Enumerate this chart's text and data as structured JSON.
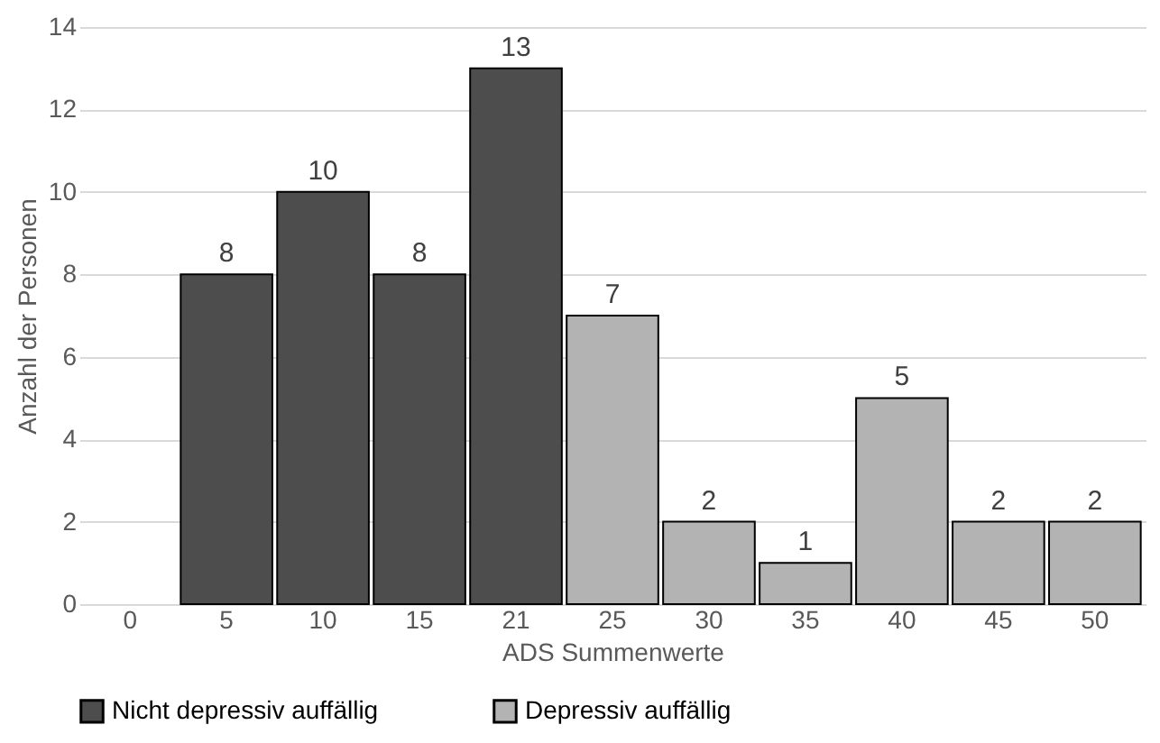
{
  "chart_data": {
    "type": "bar",
    "xlabel": "ADS Summenwerte",
    "ylabel": "Anzahl der Personen",
    "categories": [
      "0",
      "5",
      "10",
      "15",
      "21",
      "25",
      "30",
      "35",
      "40",
      "45",
      "50"
    ],
    "series": [
      {
        "name": "Nicht depressiv auffällig",
        "color": "#4d4d4d",
        "values": [
          null,
          8,
          10,
          8,
          13,
          null,
          null,
          null,
          null,
          null,
          null
        ]
      },
      {
        "name": "Depressiv auffällig",
        "color": "#b3b3b3",
        "values": [
          null,
          null,
          null,
          null,
          null,
          7,
          2,
          1,
          5,
          2,
          2
        ]
      }
    ],
    "ylim": [
      0,
      14
    ],
    "yticks": [
      0,
      2,
      4,
      6,
      8,
      10,
      12,
      14
    ],
    "grid": "y",
    "legend": "bottom",
    "data_labels": true
  }
}
